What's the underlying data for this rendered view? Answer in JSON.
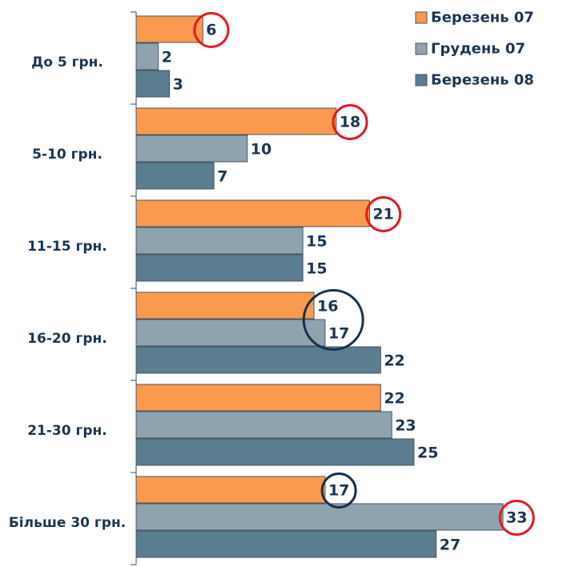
{
  "chart_data": {
    "type": "hbar",
    "categories": [
      "До 5 грн.",
      "5-10 грн.",
      "11-15 грн.",
      "16-20 грн.",
      "21-30 грн.",
      "Більше 30 грн."
    ],
    "series": [
      {
        "name": "Березень 07",
        "color": "#fa9a4f",
        "values": [
          6,
          18,
          21,
          16,
          22,
          17
        ]
      },
      {
        "name": "Грудень 07",
        "color": "#8fa3ae",
        "values": [
          2,
          10,
          15,
          17,
          23,
          33
        ]
      },
      {
        "name": "Березень 08",
        "color": "#5a7d8f",
        "values": [
          3,
          7,
          15,
          22,
          25,
          27
        ]
      }
    ],
    "legend": "top-right"
  }
}
